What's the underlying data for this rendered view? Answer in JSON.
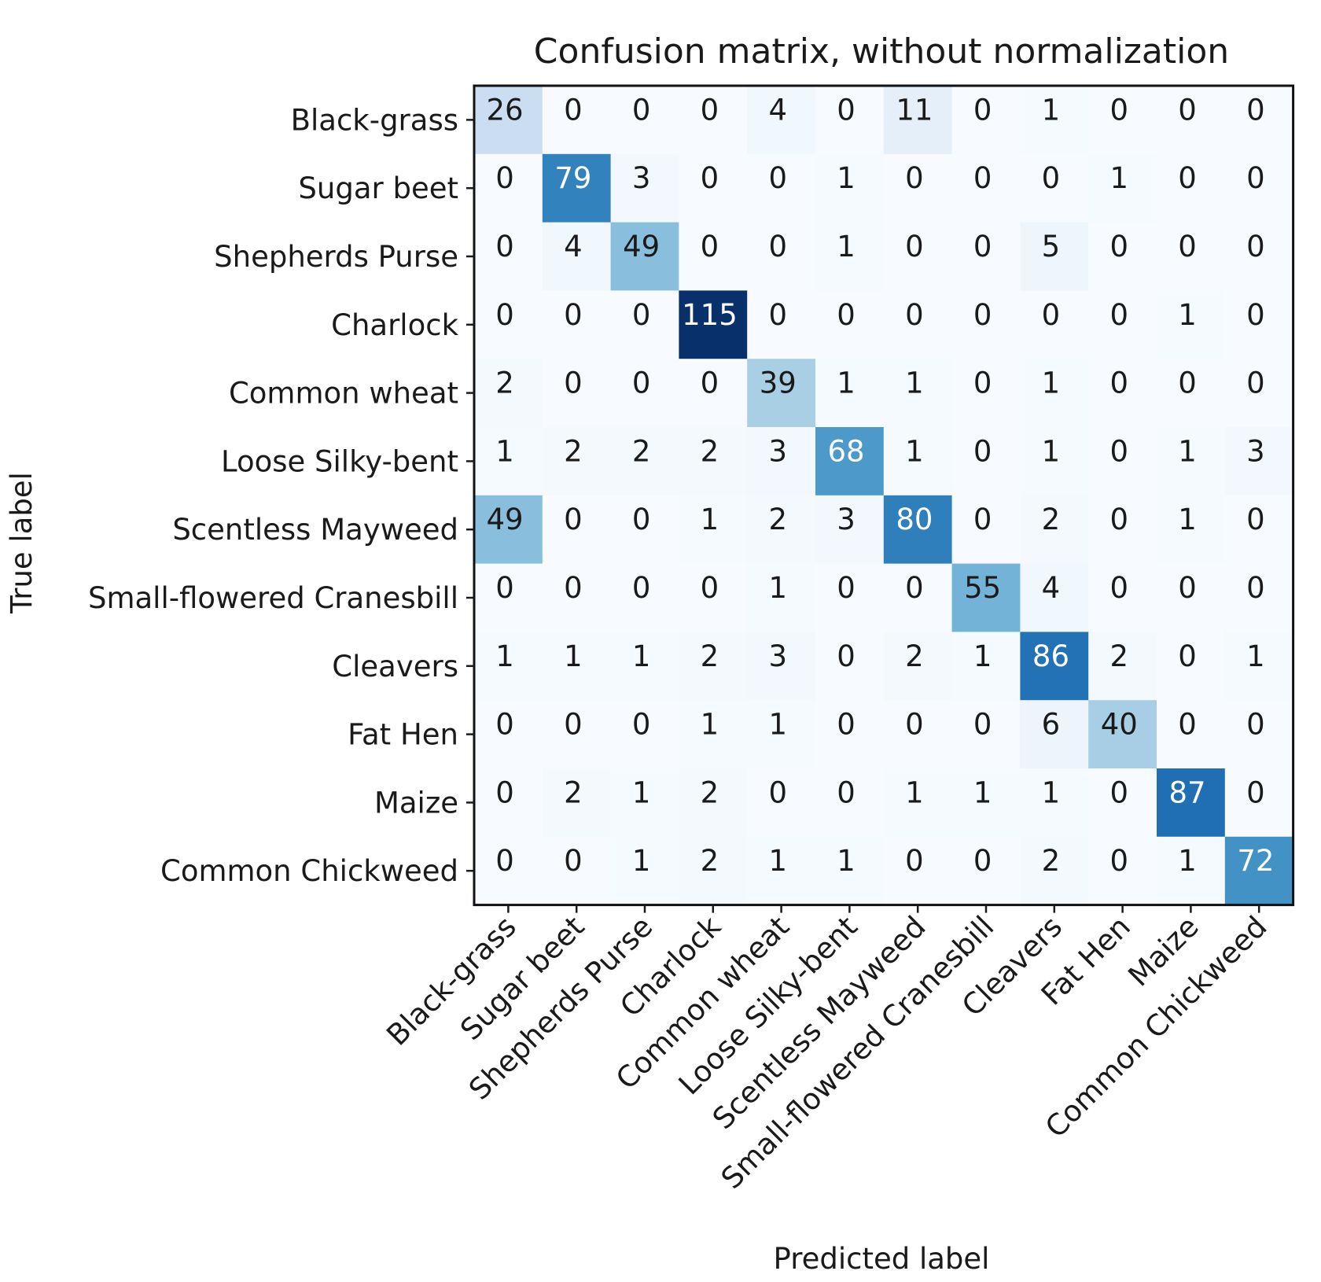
{
  "chart_data": {
    "type": "heatmap",
    "title": "Confusion matrix, without normalization",
    "xlabel": "Predicted label",
    "ylabel": "True label",
    "colormap": "Blues",
    "value_range": [
      0,
      115
    ],
    "labels": [
      "Black-grass",
      "Sugar beet",
      "Shepherds Purse",
      "Charlock",
      "Common wheat",
      "Loose Silky-bent",
      "Scentless Mayweed",
      "Small-flowered Cranesbill",
      "Cleavers",
      "Fat Hen",
      "Maize",
      "Common Chickweed"
    ],
    "matrix": [
      [
        26,
        0,
        0,
        0,
        4,
        0,
        11,
        0,
        1,
        0,
        0,
        0
      ],
      [
        0,
        79,
        3,
        0,
        0,
        1,
        0,
        0,
        0,
        1,
        0,
        0
      ],
      [
        0,
        4,
        49,
        0,
        0,
        1,
        0,
        0,
        5,
        0,
        0,
        0
      ],
      [
        0,
        0,
        0,
        115,
        0,
        0,
        0,
        0,
        0,
        0,
        1,
        0
      ],
      [
        2,
        0,
        0,
        0,
        39,
        1,
        1,
        0,
        1,
        0,
        0,
        0
      ],
      [
        1,
        2,
        2,
        2,
        3,
        68,
        1,
        0,
        1,
        0,
        1,
        3
      ],
      [
        49,
        0,
        0,
        1,
        2,
        3,
        80,
        0,
        2,
        0,
        1,
        0
      ],
      [
        0,
        0,
        0,
        0,
        1,
        0,
        0,
        55,
        4,
        0,
        0,
        0
      ],
      [
        1,
        1,
        1,
        2,
        3,
        0,
        2,
        1,
        86,
        2,
        0,
        1
      ],
      [
        0,
        0,
        0,
        1,
        1,
        0,
        0,
        0,
        6,
        40,
        0,
        0
      ],
      [
        0,
        2,
        1,
        2,
        0,
        0,
        1,
        1,
        1,
        0,
        87,
        0
      ],
      [
        0,
        0,
        1,
        2,
        1,
        1,
        0,
        0,
        2,
        0,
        1,
        72
      ]
    ],
    "grid": false
  }
}
